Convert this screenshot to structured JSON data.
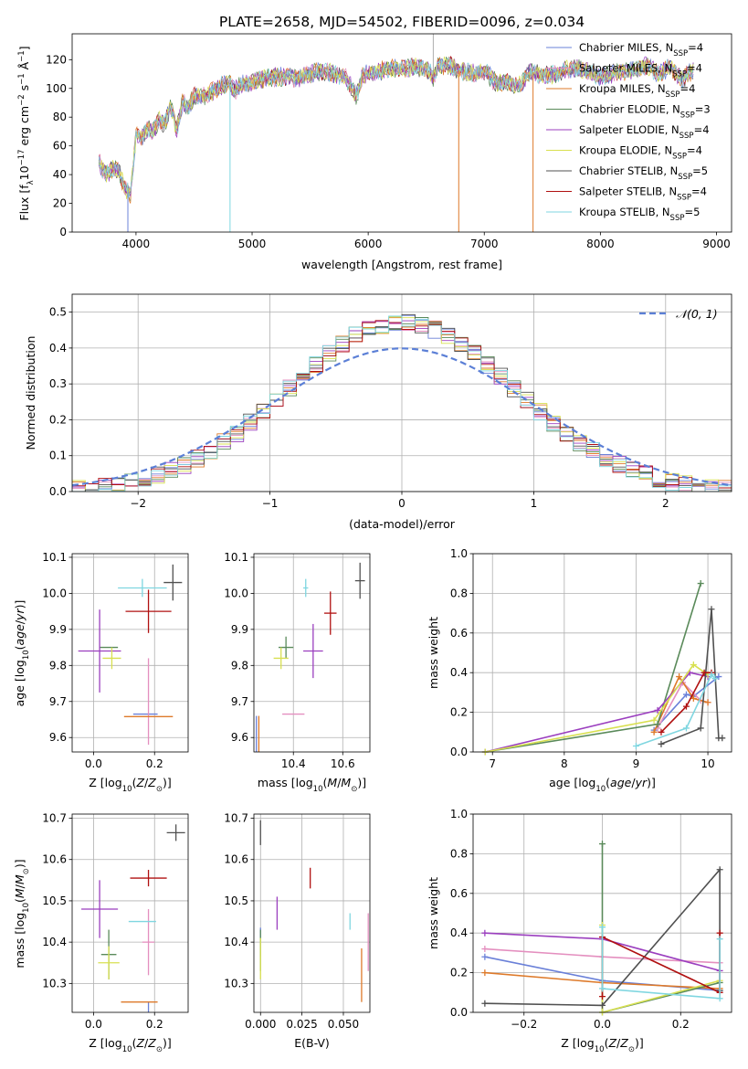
{
  "figure_title": "PLATE=2658, MJD=54502, FIBERID=0096, z=0.034",
  "model_colors": [
    "#6a80d8",
    "#e48fbf",
    "#de7a2a",
    "#5a8a5a",
    "#9b3fbf",
    "#d8e050",
    "#505050",
    "#b01010",
    "#7fd6e0"
  ],
  "chart_data": [
    {
      "id": "spectrum",
      "type": "line",
      "title": "PLATE=2658, MJD=54502, FIBERID=0096, z=0.034",
      "xlabel": "wavelength [Angstrom, rest frame]",
      "ylabel": "Flux [f",
      "xlim": [
        3450,
        9130
      ],
      "ylim": [
        0,
        138
      ],
      "xticks": [
        4000,
        5000,
        6000,
        7000,
        8000,
        9000
      ],
      "yticks": [
        0,
        20,
        40,
        60,
        80,
        100,
        120
      ],
      "legend_position": "right",
      "grid": false,
      "legend": [
        {
          "name": "Chabrier MILES, N",
          "n": "4"
        },
        {
          "name": "Salpeter MILES, N",
          "n": "4"
        },
        {
          "name": "Kroupa MILES, N",
          "n": "4"
        },
        {
          "name": "Chabrier ELODIE, N",
          "n": "3"
        },
        {
          "name": "Salpeter ELODIE, N",
          "n": "4"
        },
        {
          "name": "Kroupa ELODIE, N",
          "n": "4"
        },
        {
          "name": "Chabrier STELIB, N",
          "n": "5"
        },
        {
          "name": "Salpeter STELIB, N",
          "n": "4"
        },
        {
          "name": "Kroupa STELIB, N",
          "n": "5"
        }
      ],
      "envelope": {
        "x": [
          3680,
          3700,
          3750,
          3800,
          3850,
          3900,
          3950,
          4000,
          4050,
          4100,
          4150,
          4200,
          4250,
          4300,
          4350,
          4400,
          4450,
          4500,
          4600,
          4700,
          4800,
          4850,
          4900,
          5000,
          5100,
          5200,
          5300,
          5400,
          5500,
          5600,
          5700,
          5800,
          5850,
          5900,
          5950,
          6000,
          6100,
          6200,
          6300,
          6400,
          6500,
          6560,
          6600,
          6700,
          6800,
          6900,
          7000,
          7100,
          7200,
          7300,
          7400,
          7500,
          7600,
          7700,
          7800,
          7900,
          8000,
          8100,
          8200,
          8300,
          8400,
          8500,
          8600,
          8700,
          8800
        ],
        "y": [
          50,
          44,
          40,
          45,
          42,
          32,
          25,
          68,
          66,
          72,
          70,
          78,
          75,
          88,
          70,
          90,
          87,
          94,
          95,
          100,
          104,
          98,
          103,
          104,
          107,
          108,
          108,
          107,
          110,
          112,
          110,
          108,
          102,
          94,
          109,
          110,
          112,
          114,
          114,
          115,
          114,
          108,
          116,
          116,
          112,
          111,
          112,
          104,
          104,
          102,
          112,
          108,
          110,
          113,
          114,
          112,
          108,
          110,
          112,
          113,
          116,
          110,
          115,
          106,
          113
        ]
      }
    },
    {
      "id": "residuals",
      "type": "histogram",
      "xlabel": "(data-model)/error",
      "ylabel": "Normed distribution",
      "xlim": [
        -2.5,
        2.5
      ],
      "ylim": [
        0,
        0.55
      ],
      "xticks": [
        -2,
        -1,
        0,
        1,
        2
      ],
      "yticks": [
        0.0,
        0.1,
        0.2,
        0.3,
        0.4,
        0.5
      ],
      "grid": true,
      "legend_position": "upper right",
      "legend": [
        {
          "name": "𝒩(0, 1)",
          "color": "#5b7fd6",
          "style": "dashed"
        }
      ]
    },
    {
      "id": "age-vs-Z",
      "type": "errorbar",
      "xlabel": "Z [log",
      "ylabel": "age  [log",
      "xlim": [
        -0.07,
        0.31
      ],
      "ylim": [
        9.56,
        10.11
      ],
      "xticks": [
        0.0,
        0.2
      ],
      "yticks": [
        9.6,
        9.7,
        9.8,
        9.9,
        10.0,
        10.1
      ],
      "grid": true,
      "points": [
        {
          "x": 0.17,
          "y": 9.665,
          "xerr": 0.04,
          "yerr": 0.0
        },
        {
          "x": 0.18,
          "y": 9.7,
          "xerr": 0.0,
          "yerr": 0.12
        },
        {
          "x": 0.18,
          "y": 9.658,
          "xerr": 0.08,
          "yerr": 0.0
        },
        {
          "x": 0.05,
          "y": 9.85,
          "xerr": 0.03,
          "yerr": 0.0
        },
        {
          "x": 0.02,
          "y": 9.84,
          "xerr": 0.07,
          "yerr": 0.115
        },
        {
          "x": 0.06,
          "y": 9.82,
          "xerr": 0.03,
          "yerr": 0.03
        },
        {
          "x": 0.26,
          "y": 10.03,
          "xerr": 0.03,
          "yerr": 0.05
        },
        {
          "x": 0.18,
          "y": 9.95,
          "xerr": 0.075,
          "yerr": 0.06
        },
        {
          "x": 0.16,
          "y": 10.015,
          "xerr": 0.08,
          "yerr": 0.025
        }
      ]
    },
    {
      "id": "age-vs-mass",
      "type": "errorbar",
      "xlabel": "mass [log",
      "ylabel": "",
      "xlim": [
        10.24,
        10.71
      ],
      "ylim": [
        9.56,
        10.11
      ],
      "xticks": [
        10.4,
        10.6
      ],
      "yticks": [
        9.6,
        9.7,
        9.8,
        9.9,
        10.0,
        10.1
      ],
      "grid": true,
      "points": [
        {
          "x": 10.25,
          "y": 9.66,
          "xerr": 0.0,
          "yerr": 0.0
        },
        {
          "x": 10.4,
          "y": 9.665,
          "xerr": 0.045,
          "yerr": 0.0
        },
        {
          "x": 10.26,
          "y": 9.66,
          "xerr": 0.0,
          "yerr": 0.0
        },
        {
          "x": 10.37,
          "y": 9.85,
          "xerr": 0.03,
          "yerr": 0.03
        },
        {
          "x": 10.48,
          "y": 9.84,
          "xerr": 0.04,
          "yerr": 0.075
        },
        {
          "x": 10.35,
          "y": 9.82,
          "xerr": 0.03,
          "yerr": 0.03
        },
        {
          "x": 10.67,
          "y": 10.035,
          "xerr": 0.02,
          "yerr": 0.05
        },
        {
          "x": 10.55,
          "y": 9.945,
          "xerr": 0.025,
          "yerr": 0.06
        },
        {
          "x": 10.45,
          "y": 10.015,
          "xerr": 0.01,
          "yerr": 0.025
        }
      ]
    },
    {
      "id": "weight-vs-age",
      "type": "line",
      "xlabel": "age  [log",
      "ylabel": "mass weight",
      "xlim": [
        6.73,
        10.33
      ],
      "ylim": [
        0,
        1.0
      ],
      "xticks": [
        7,
        8,
        9,
        10
      ],
      "yticks": [
        0.0,
        0.2,
        0.4,
        0.6,
        0.8,
        1.0
      ],
      "grid": true,
      "series": [
        {
          "x": [
            9.25,
            9.7,
            9.8,
            10.15
          ],
          "y": [
            0.11,
            0.29,
            0.28,
            0.38
          ]
        },
        {
          "x": [
            9.3,
            9.65,
            9.9,
            10.0
          ],
          "y": [
            0.12,
            0.35,
            0.26,
            0.25
          ]
        },
        {
          "x": [
            9.25,
            9.6,
            9.8,
            10.0
          ],
          "y": [
            0.1,
            0.38,
            0.27,
            0.25
          ]
        },
        {
          "x": [
            6.9,
            9.3,
            9.9
          ],
          "y": [
            0.0,
            0.14,
            0.85
          ]
        },
        {
          "x": [
            6.9,
            9.3,
            9.75,
            10.0
          ],
          "y": [
            0.0,
            0.21,
            0.4,
            0.38
          ]
        },
        {
          "x": [
            6.9,
            9.25,
            9.8,
            10.0
          ],
          "y": [
            0.0,
            0.16,
            0.44,
            0.39
          ]
        },
        {
          "x": [
            9.35,
            9.9,
            10.05,
            10.15,
            10.2
          ],
          "y": [
            0.04,
            0.12,
            0.72,
            0.07,
            0.07
          ]
        },
        {
          "x": [
            9.35,
            9.7,
            9.95,
            10.05
          ],
          "y": [
            0.1,
            0.23,
            0.4,
            0.4
          ]
        },
        {
          "x": [
            9.0,
            9.7,
            10.05,
            10.1
          ],
          "y": [
            0.03,
            0.12,
            0.39,
            0.37
          ]
        }
      ]
    },
    {
      "id": "mass-vs-Z",
      "type": "errorbar",
      "xlabel": "Z [log",
      "ylabel": "mass [log",
      "xlim": [
        -0.07,
        0.31
      ],
      "ylim": [
        10.23,
        10.71
      ],
      "xticks": [
        0.0,
        0.2
      ],
      "yticks": [
        10.3,
        10.4,
        10.5,
        10.6,
        10.7
      ],
      "grid": true,
      "points": [
        {
          "x": 0.18,
          "y": 10.255,
          "xerr": 0.0,
          "yerr": 0.0
        },
        {
          "x": 0.18,
          "y": 10.4,
          "xerr": 0.02,
          "yerr": 0.08
        },
        {
          "x": 0.15,
          "y": 10.255,
          "xerr": 0.06,
          "yerr": 0.0
        },
        {
          "x": 0.05,
          "y": 10.37,
          "xerr": 0.025,
          "yerr": 0.06
        },
        {
          "x": 0.02,
          "y": 10.48,
          "xerr": 0.06,
          "yerr": 0.07
        },
        {
          "x": 0.05,
          "y": 10.35,
          "xerr": 0.035,
          "yerr": 0.04
        },
        {
          "x": 0.27,
          "y": 10.665,
          "xerr": 0.03,
          "yerr": 0.02
        },
        {
          "x": 0.18,
          "y": 10.555,
          "xerr": 0.06,
          "yerr": 0.02
        },
        {
          "x": 0.16,
          "y": 10.45,
          "xerr": 0.045,
          "yerr": 0.0
        }
      ]
    },
    {
      "id": "mass-vs-ebv",
      "type": "errorbar",
      "xlabel": "E(B-V)",
      "ylabel": "",
      "xlim": [
        -0.004,
        0.066
      ],
      "ylim": [
        10.23,
        10.71
      ],
      "xticks": [
        0.0,
        0.025,
        0.05
      ],
      "yticks": [
        10.3,
        10.4,
        10.5,
        10.6,
        10.7
      ],
      "grid": true,
      "points": [
        {
          "x": 0.0,
          "y": 10.4,
          "xerr": 0.0,
          "yerr": 0.035
        },
        {
          "x": 0.065,
          "y": 10.4,
          "xerr": 0.0,
          "yerr": 0.07
        },
        {
          "x": 0.061,
          "y": 10.32,
          "xerr": 0.0,
          "yerr": 0.065
        },
        {
          "x": 0.0,
          "y": 10.38,
          "xerr": 0.0,
          "yerr": 0.05
        },
        {
          "x": 0.01,
          "y": 10.47,
          "xerr": 0.0,
          "yerr": 0.04
        },
        {
          "x": 0.0,
          "y": 10.36,
          "xerr": 0.0,
          "yerr": 0.05
        },
        {
          "x": 0.0,
          "y": 10.665,
          "xerr": 0.0,
          "yerr": 0.03
        },
        {
          "x": 0.03,
          "y": 10.555,
          "xerr": 0.0,
          "yerr": 0.025
        },
        {
          "x": 0.054,
          "y": 10.45,
          "xerr": 0.0,
          "yerr": 0.02
        }
      ]
    },
    {
      "id": "weight-vs-Z",
      "type": "line",
      "xlabel": "Z [log",
      "ylabel": "mass weight",
      "xlim": [
        -0.33,
        0.33
      ],
      "ylim": [
        0,
        1.0
      ],
      "xticks": [
        -0.2,
        0.0,
        0.2
      ],
      "yticks": [
        0.0,
        0.2,
        0.4,
        0.6,
        0.8,
        1.0
      ],
      "grid": true,
      "series": [
        {
          "x": [
            -0.3,
            0.0,
            0.3
          ],
          "y": [
            0.28,
            0.16,
            0.11
          ]
        },
        {
          "x": [
            -0.3,
            0.0,
            0.3
          ],
          "y": [
            0.32,
            0.28,
            0.25
          ]
        },
        {
          "x": [
            -0.3,
            0.0,
            0.3
          ],
          "y": [
            0.2,
            0.15,
            0.12
          ]
        },
        {
          "x": [
            0.0,
            0.0,
            0.3
          ],
          "y": [
            0.85,
            0.0,
            0.15
          ]
        },
        {
          "x": [
            -0.3,
            0.0,
            0.3
          ],
          "y": [
            0.4,
            0.37,
            0.21
          ]
        },
        {
          "x": [
            0.0,
            0.0,
            0.3
          ],
          "y": [
            0.44,
            0.0,
            0.16
          ]
        },
        {
          "x": [
            -0.3,
            0.0,
            0.3,
            0.3
          ],
          "y": [
            0.045,
            0.035,
            0.72,
            0.11
          ]
        },
        {
          "x": [
            0.0,
            0.0,
            0.3,
            0.3
          ],
          "y": [
            0.08,
            0.38,
            0.1,
            0.4
          ]
        },
        {
          "x": [
            0.0,
            0.0,
            0.3,
            0.3
          ],
          "y": [
            0.43,
            0.12,
            0.07,
            0.37
          ]
        }
      ]
    }
  ]
}
